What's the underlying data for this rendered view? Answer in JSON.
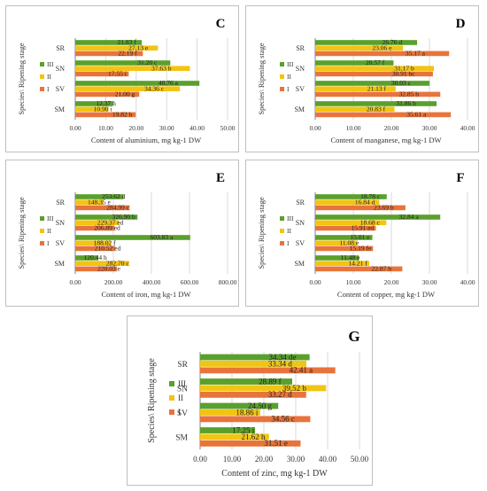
{
  "shared": {
    "ylabel": "Species\\ Ripening stage",
    "categories": [
      "SR",
      "SN",
      "SV",
      "SM"
    ],
    "legend": [
      "III",
      "II",
      "I"
    ],
    "colors": {
      "III": "#5aa02c",
      "II": "#f2c413",
      "I": "#e8743b"
    }
  },
  "chart_data": [
    {
      "type": "bar",
      "panel_letter": "C",
      "xlabel": "Content of aluminium, mg kg-1 DW",
      "xlim": [
        0,
        50
      ],
      "xticks": [
        "0.00",
        "10.00",
        "20.00",
        "30.00",
        "40.00",
        "50.00"
      ],
      "categories": [
        "SR",
        "SN",
        "SV",
        "SM"
      ],
      "series": [
        {
          "name": "III",
          "values": [
            21.83,
            31.2,
            40.76,
            12.37
          ],
          "labels": [
            "21.83 f",
            "31.20 c",
            "40.76 a",
            "12.37 h"
          ]
        },
        {
          "name": "II",
          "values": [
            27.13,
            37.63,
            34.36,
            10.9
          ],
          "labels": [
            "27.13 e",
            "37.63 b",
            "34.36 c",
            "10.90 i"
          ]
        },
        {
          "name": "I",
          "values": [
            22.19,
            17.55,
            21.0,
            19.82
          ],
          "labels": [
            "22.19 f",
            "17.55 i",
            "21.00 g",
            "19.82 h"
          ]
        }
      ]
    },
    {
      "type": "bar",
      "panel_letter": "D",
      "xlabel": "Content of manganese, mg kg-1 DW",
      "xlim": [
        0,
        40
      ],
      "xticks": [
        "0.00",
        "10.00",
        "20.00",
        "30.00",
        "40.00"
      ],
      "categories": [
        "SR",
        "SN",
        "SV",
        "SM"
      ],
      "series": [
        {
          "name": "III",
          "values": [
            26.76,
            20.57,
            30.03,
            31.86
          ],
          "labels": [
            "26.76 d",
            "20.57 f",
            "30.03 c",
            "31.86 b"
          ]
        },
        {
          "name": "II",
          "values": [
            23.06,
            31.17,
            21.13,
            20.83
          ],
          "labels": [
            "23.06 e",
            "31.17 b",
            "21.13 f",
            "20.83 f"
          ]
        },
        {
          "name": "I",
          "values": [
            35.17,
            30.91,
            32.85,
            35.61
          ],
          "labels": [
            "35.17 a",
            "30.91 bc",
            "32.85 b",
            "35.61 a"
          ]
        }
      ]
    },
    {
      "type": "bar",
      "panel_letter": "E",
      "xlabel": "Content of iron, mg kg-1 DW",
      "xlim": [
        0,
        800
      ],
      "xticks": [
        "0.00",
        "200.00",
        "400.00",
        "600.00",
        "800.00"
      ],
      "categories": [
        "SR",
        "SN",
        "SV",
        "SM"
      ],
      "series": [
        {
          "name": "III",
          "values": [
            253.62,
            326.9,
            603.83,
            120.44
          ],
          "labels": [
            "253.62 d",
            "326.90 b",
            "603.83 a",
            "120.44 h"
          ]
        },
        {
          "name": "II",
          "values": [
            148.35,
            229.37,
            188.02,
            282.7
          ],
          "labels": [
            "148.35 e",
            "229.37 ed",
            "188.02 f",
            "282.70 c"
          ]
        },
        {
          "name": "I",
          "values": [
            284.99,
            206.89,
            210.52,
            220.03
          ],
          "labels": [
            "284.99 c",
            "206.89 ed",
            "210.52 ed",
            "220.03 e"
          ]
        }
      ]
    },
    {
      "type": "bar",
      "panel_letter": "F",
      "xlabel": "Content of copper, mg kg-1 DW",
      "xlim": [
        0,
        40
      ],
      "xticks": [
        "0.00",
        "10.00",
        "20.00",
        "30.00",
        "40.00"
      ],
      "categories": [
        "SR",
        "SN",
        "SV",
        "SM"
      ],
      "series": [
        {
          "name": "III",
          "values": [
            18.78,
            32.84,
            15.01,
            11.48
          ],
          "labels": [
            "18.78 c",
            "32.84 a",
            "15.01 e",
            "11.48 e"
          ]
        },
        {
          "name": "II",
          "values": [
            16.84,
            18.68,
            11.08,
            14.21
          ],
          "labels": [
            "16.84 d",
            "18.68 c",
            "11.08 e",
            "14.21 f"
          ]
        },
        {
          "name": "I",
          "values": [
            23.69,
            15.91,
            15.19,
            22.87
          ],
          "labels": [
            "23.69 b",
            "15.91 ed",
            "15.19 fe",
            "22.87 b"
          ]
        }
      ]
    },
    {
      "type": "bar",
      "panel_letter": "G",
      "xlabel": "Content of zinc, mg kg-1 DW",
      "xlim": [
        0,
        50
      ],
      "xticks": [
        "0.00",
        "10.00",
        "20.00",
        "30.00",
        "40.00",
        "50.00"
      ],
      "categories": [
        "SR",
        "SN",
        "SV",
        "SM"
      ],
      "series": [
        {
          "name": "III",
          "values": [
            34.34,
            28.89,
            24.5,
            17.25
          ],
          "labels": [
            "34.34 de",
            "28.89 f",
            "24.50 g",
            "17.25 i"
          ]
        },
        {
          "name": "II",
          "values": [
            33.34,
            39.52,
            18.86,
            21.62
          ],
          "labels": [
            "33.34 d",
            "39.52 b",
            "18.86 i",
            "21.62 h"
          ]
        },
        {
          "name": "I",
          "values": [
            42.41,
            33.27,
            34.56,
            31.51
          ],
          "labels": [
            "42.41 a",
            "33.27 d",
            "34.56 c",
            "31.51 e"
          ]
        }
      ]
    }
  ]
}
